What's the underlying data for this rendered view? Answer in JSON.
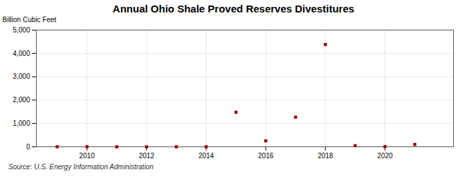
{
  "chart_data": {
    "type": "scatter",
    "title": "Annual Ohio Shale Proved Reserves Divestitures",
    "ylabel": "Billion Cubic Feet",
    "source": "Source: U.S. Energy Information Administration",
    "x": [
      2009,
      2010,
      2011,
      2012,
      2013,
      2014,
      2015,
      2016,
      2017,
      2018,
      2019,
      2020,
      2021
    ],
    "values": [
      3,
      5,
      0,
      0,
      2,
      4,
      1480,
      255,
      1270,
      4380,
      50,
      10,
      100
    ],
    "color": "#990000",
    "marker": "square",
    "xlim": [
      2008.3,
      2022.3
    ],
    "xticks": [
      2010,
      2012,
      2014,
      2016,
      2018,
      2020
    ],
    "ylim": [
      0,
      5000
    ],
    "yticks": [
      0,
      {
        "value": 1000,
        "label": "1,000"
      },
      {
        "value": 2000,
        "label": "2,000"
      },
      {
        "value": 3000,
        "label": "3,000"
      },
      {
        "value": 4000,
        "label": "4,000"
      },
      {
        "value": 5000,
        "label": "5,000"
      }
    ],
    "grid": true
  }
}
